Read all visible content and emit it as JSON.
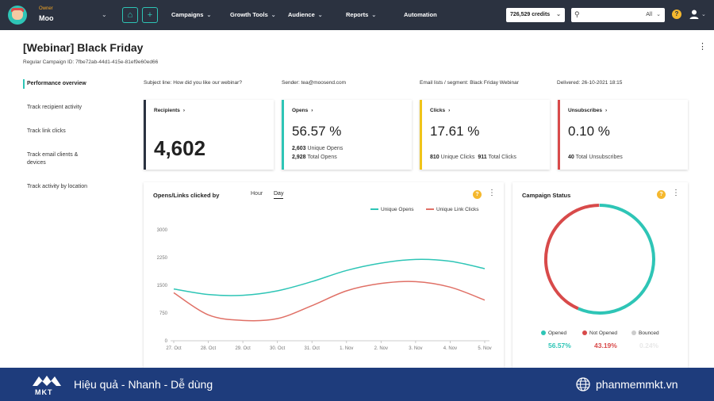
{
  "header": {
    "owner_label": "Owner",
    "owner_name": "Moo",
    "nav": [
      {
        "label": "Campaigns"
      },
      {
        "label": "Growth Tools"
      },
      {
        "label": "Audience"
      },
      {
        "label": "Reports"
      },
      {
        "label": "Automation"
      }
    ],
    "credits": "726,529 credits",
    "search_filter": "All",
    "icons": [
      "home-icon",
      "plus-icon",
      "search-icon",
      "help-icon",
      "user-icon"
    ]
  },
  "campaign": {
    "title": "[Webinar] Black Friday",
    "id_line": "Regular Campaign ID: 7fbe72ab-44d1-415e-81ef9e60ed66"
  },
  "sidebar": {
    "items": [
      {
        "label": "Performance overview"
      },
      {
        "label": "Track recipient activity"
      },
      {
        "label": "Track link clicks"
      },
      {
        "label": "Track email clients & devices"
      },
      {
        "label": "Track activity by location"
      }
    ]
  },
  "meta": {
    "subject": "Subject line: How did you like our webinar?",
    "sender": "Sender: tea@moosend.com",
    "lists": "Email lists / segment: Black Friday Webinar",
    "delivered": "Delivered: 26-10-2021 18:15"
  },
  "kpis": {
    "recipients": {
      "label": "Recipients",
      "value": "4,602"
    },
    "opens": {
      "label": "Opens",
      "pct": "56.57 %",
      "unique_num": "2,603",
      "unique_label": "Unique Opens",
      "total_num": "2,928",
      "total_label": "Total Opens"
    },
    "clicks": {
      "label": "Clicks",
      "pct": "17.61 %",
      "unique_num": "810",
      "unique_label": "Unique Clicks",
      "total_num": "911",
      "total_label": "Total Clicks"
    },
    "unsubs": {
      "label": "Unsubscribes",
      "pct": "0.10 %",
      "total_num": "40",
      "total_label": "Total Unsubscribes"
    }
  },
  "colors": {
    "opens": "#2ec5b6",
    "clicks": "#f0c419",
    "unsubs": "#d84a4a",
    "recipients": "#2b3240",
    "opened_line": "#2ec5b6",
    "clicks_line": "#e07066",
    "banner": "#1e3c7c"
  },
  "opens_chart": {
    "title": "Opens/Links clicked by",
    "toggle_hour": "Hour",
    "toggle_day": "Day",
    "selected": "Day"
  },
  "chart_data": [
    {
      "type": "line",
      "title": "Opens/Links clicked by",
      "x": [
        "27. Oct",
        "28. Oct",
        "29. Oct",
        "30. Oct",
        "31. Oct",
        "1. Nov",
        "2. Nov",
        "3. Nov",
        "4. Nov",
        "5. Nov"
      ],
      "yticks": [
        0,
        750,
        1500,
        2250,
        3000
      ],
      "ylim": [
        0,
        3000
      ],
      "series": [
        {
          "name": "Unique Opens",
          "values": [
            1400,
            1250,
            1230,
            1350,
            1600,
            1900,
            2100,
            2200,
            2150,
            1950
          ]
        },
        {
          "name": "Unique Link Clicks",
          "values": [
            1300,
            700,
            550,
            600,
            950,
            1350,
            1550,
            1600,
            1450,
            1100
          ]
        }
      ],
      "legend": "top-right",
      "grid": false
    },
    {
      "type": "pie",
      "title": "Campaign Status",
      "categories": [
        "Opened",
        "Not Opened",
        "Bounced"
      ],
      "values": [
        56.57,
        43.19,
        0.24
      ],
      "labels": [
        "56.57%",
        "43.19%",
        "0.24%"
      ]
    }
  ],
  "banner": {
    "logo_text": "MKT",
    "slogan": "Hiệu quả - Nhanh - Dễ dùng",
    "site": "phanmemmkt.vn"
  }
}
